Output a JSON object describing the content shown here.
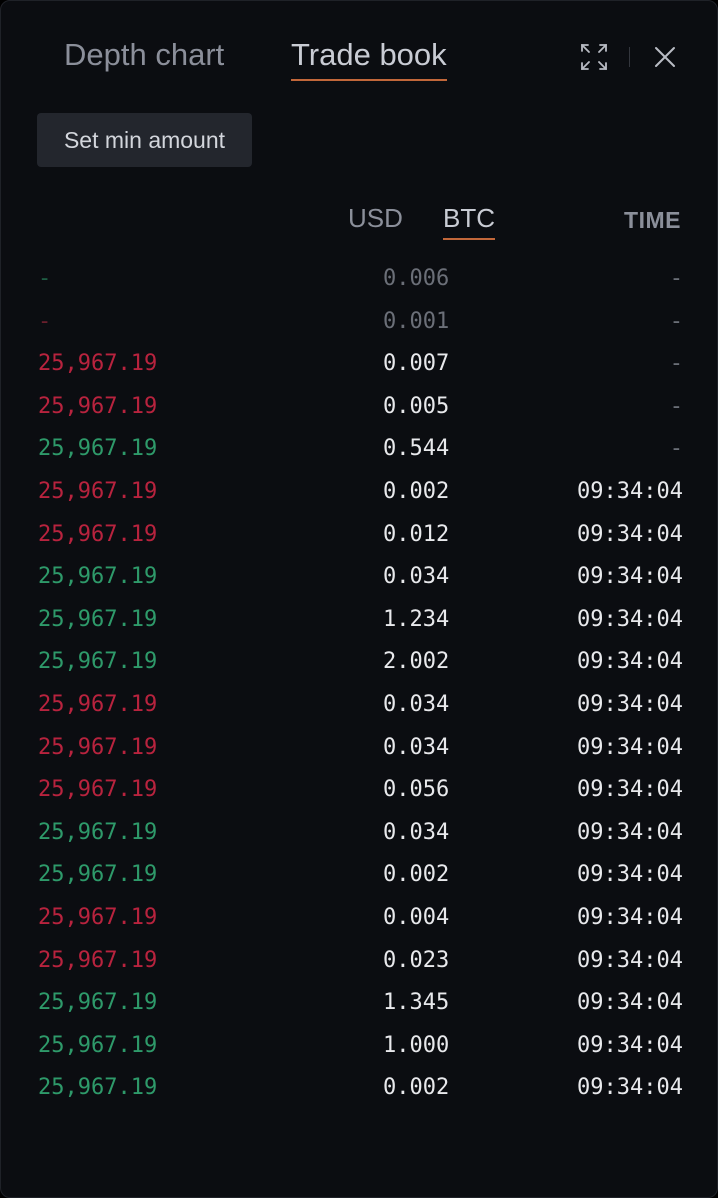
{
  "header": {
    "tabs": [
      {
        "label": "Depth chart",
        "active": false
      },
      {
        "label": "Trade book",
        "active": true
      }
    ],
    "expand_icon": "expand-icon",
    "close_icon": "close-icon"
  },
  "controls": {
    "min_amount_label": "Set min amount"
  },
  "columns": {
    "units": [
      {
        "label": "USD",
        "active": false
      },
      {
        "label": "BTC",
        "active": true
      }
    ],
    "time_label": "TIME"
  },
  "colors": {
    "buy": "#2e9a6a",
    "sell": "#b8233e",
    "accent": "#c2673a"
  },
  "trades": [
    {
      "price": "-",
      "amount": "0.006",
      "time": "-",
      "side": "buy",
      "dim": true
    },
    {
      "price": "-",
      "amount": "0.001",
      "time": "-",
      "side": "sell",
      "dim": true
    },
    {
      "price": "25,967.19",
      "amount": "0.007",
      "time": "-",
      "side": "sell",
      "dim": false
    },
    {
      "price": "25,967.19",
      "amount": "0.005",
      "time": "-",
      "side": "sell",
      "dim": false
    },
    {
      "price": "25,967.19",
      "amount": "0.544",
      "time": "-",
      "side": "buy",
      "dim": false
    },
    {
      "price": "25,967.19",
      "amount": "0.002",
      "time": "09:34:04",
      "side": "sell",
      "dim": false
    },
    {
      "price": "25,967.19",
      "amount": "0.012",
      "time": "09:34:04",
      "side": "sell",
      "dim": false
    },
    {
      "price": "25,967.19",
      "amount": "0.034",
      "time": "09:34:04",
      "side": "buy",
      "dim": false
    },
    {
      "price": "25,967.19",
      "amount": "1.234",
      "time": "09:34:04",
      "side": "buy",
      "dim": false
    },
    {
      "price": "25,967.19",
      "amount": "2.002",
      "time": "09:34:04",
      "side": "buy",
      "dim": false
    },
    {
      "price": "25,967.19",
      "amount": "0.034",
      "time": "09:34:04",
      "side": "sell",
      "dim": false
    },
    {
      "price": "25,967.19",
      "amount": "0.034",
      "time": "09:34:04",
      "side": "sell",
      "dim": false
    },
    {
      "price": "25,967.19",
      "amount": "0.056",
      "time": "09:34:04",
      "side": "sell",
      "dim": false
    },
    {
      "price": "25,967.19",
      "amount": "0.034",
      "time": "09:34:04",
      "side": "buy",
      "dim": false
    },
    {
      "price": "25,967.19",
      "amount": "0.002",
      "time": "09:34:04",
      "side": "buy",
      "dim": false
    },
    {
      "price": "25,967.19",
      "amount": "0.004",
      "time": "09:34:04",
      "side": "sell",
      "dim": false
    },
    {
      "price": "25,967.19",
      "amount": "0.023",
      "time": "09:34:04",
      "side": "sell",
      "dim": false
    },
    {
      "price": "25,967.19",
      "amount": "1.345",
      "time": "09:34:04",
      "side": "buy",
      "dim": false
    },
    {
      "price": "25,967.19",
      "amount": "1.000",
      "time": "09:34:04",
      "side": "buy",
      "dim": false
    },
    {
      "price": "25,967.19",
      "amount": "0.002",
      "time": "09:34:04",
      "side": "buy",
      "dim": false
    }
  ]
}
